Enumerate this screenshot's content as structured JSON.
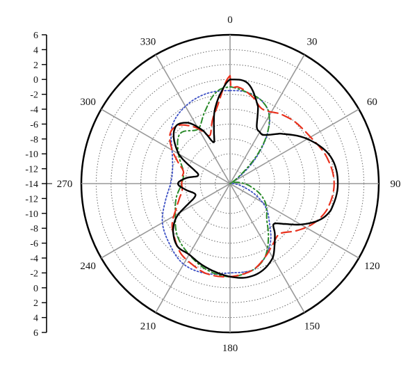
{
  "chart_data": {
    "type": "polar-line",
    "title": "",
    "radial_axis": {
      "min": -14,
      "max": 6,
      "ring_step": 2,
      "left_scale_labels": [
        "6",
        "4",
        "2",
        "0",
        "-2",
        "-4",
        "-6",
        "-8",
        "-10",
        "-12",
        "-14",
        "-12",
        "-10",
        "-8",
        "-6",
        "-4",
        "-2",
        "0",
        "2",
        "4",
        "6"
      ]
    },
    "angular_axis": {
      "direction": "clockwise",
      "zero_location": "top",
      "spoke_step_deg": 30,
      "labels": [
        "0",
        "30",
        "60",
        "90",
        "120",
        "150",
        "180",
        "210",
        "240",
        "270",
        "300",
        "330"
      ]
    },
    "grid": true,
    "series": [
      {
        "style": "solid",
        "color": "#000000",
        "points": [
          [
            0,
            0
          ],
          [
            10,
            -0.3
          ],
          [
            20,
            -3
          ],
          [
            25,
            -5.5
          ],
          [
            30,
            -6
          ],
          [
            35,
            -6
          ],
          [
            45,
            -4.5
          ],
          [
            60,
            -2
          ],
          [
            75,
            0
          ],
          [
            90,
            0.5
          ],
          [
            105,
            0
          ],
          [
            112,
            -1
          ],
          [
            120,
            -3
          ],
          [
            127,
            -5
          ],
          [
            133,
            -6
          ],
          [
            138,
            -5
          ],
          [
            143,
            -4
          ],
          [
            150,
            -2.5
          ],
          [
            160,
            -1.5
          ],
          [
            170,
            -1.2
          ],
          [
            180,
            -1.5
          ],
          [
            190,
            -2
          ],
          [
            200,
            -2.5
          ],
          [
            210,
            -3
          ],
          [
            220,
            -3
          ],
          [
            230,
            -4
          ],
          [
            238,
            -5.5
          ],
          [
            245,
            -8
          ],
          [
            250,
            -9
          ],
          [
            255,
            -9
          ],
          [
            262,
            -8
          ],
          [
            270,
            -7
          ],
          [
            277,
            -8
          ],
          [
            283,
            -9.5
          ],
          [
            290,
            -9
          ],
          [
            300,
            -6
          ],
          [
            315,
            -3.5
          ],
          [
            325,
            -4
          ],
          [
            333,
            -6
          ],
          [
            338,
            -8
          ],
          [
            342,
            -7
          ],
          [
            348,
            -4
          ],
          [
            355,
            -1.5
          ],
          [
            360,
            0
          ]
        ]
      },
      {
        "style": "dashed",
        "color": "#e8301c",
        "points": [
          [
            0,
            0.5
          ],
          [
            0.5,
            -1
          ],
          [
            5,
            -1
          ],
          [
            15,
            -2
          ],
          [
            22,
            -3
          ],
          [
            28,
            -3
          ],
          [
            35,
            -2.5
          ],
          [
            45,
            -2
          ],
          [
            60,
            -1.5
          ],
          [
            75,
            -0.5
          ],
          [
            90,
            0
          ],
          [
            105,
            -0.5
          ],
          [
            115,
            -1.5
          ],
          [
            125,
            -3
          ],
          [
            135,
            -4.5
          ],
          [
            145,
            -4
          ],
          [
            155,
            -3
          ],
          [
            165,
            -2
          ],
          [
            180,
            -1.5
          ],
          [
            195,
            -1.5
          ],
          [
            205,
            -2
          ],
          [
            215,
            -2.5
          ],
          [
            225,
            -3.5
          ],
          [
            235,
            -4.5
          ],
          [
            245,
            -6
          ],
          [
            255,
            -7
          ],
          [
            262,
            -7.5
          ],
          [
            270,
            -7.5
          ],
          [
            278,
            -7.5
          ],
          [
            285,
            -7.5
          ],
          [
            292,
            -6.5
          ],
          [
            300,
            -5
          ],
          [
            310,
            -3.5
          ],
          [
            318,
            -3.5
          ],
          [
            325,
            -4.5
          ],
          [
            330,
            -5.5
          ],
          [
            337,
            -7
          ],
          [
            345,
            -5
          ],
          [
            352,
            -3
          ],
          [
            360,
            0.5
          ]
        ]
      },
      {
        "style": "dash-dot",
        "color": "#2a8a2a",
        "points": [
          [
            0,
            -1
          ],
          [
            10,
            -1.5
          ],
          [
            20,
            -2
          ],
          [
            28,
            -3
          ],
          [
            35,
            -5
          ],
          [
            42,
            -8
          ],
          [
            50,
            -12
          ],
          [
            60,
            -14
          ],
          [
            80,
            -13
          ],
          [
            100,
            -11
          ],
          [
            115,
            -9
          ],
          [
            125,
            -8
          ],
          [
            135,
            -7
          ],
          [
            145,
            -5
          ],
          [
            155,
            -3
          ],
          [
            165,
            -2
          ],
          [
            180,
            -1.5
          ],
          [
            195,
            -2
          ],
          [
            210,
            -3
          ],
          [
            225,
            -4
          ],
          [
            240,
            -5.5
          ],
          [
            255,
            -6.5
          ],
          [
            270,
            -7.5
          ],
          [
            285,
            -7.5
          ],
          [
            300,
            -6
          ],
          [
            315,
            -4.5
          ],
          [
            330,
            -5.5
          ],
          [
            342,
            -3.5
          ],
          [
            352,
            -1.5
          ],
          [
            360,
            -1
          ]
        ]
      },
      {
        "style": "dotted",
        "color": "#3b4fc4",
        "points": [
          [
            0,
            -1.5
          ],
          [
            10,
            -1.5
          ],
          [
            20,
            -2
          ],
          [
            28,
            -3
          ],
          [
            35,
            -5
          ],
          [
            45,
            -9
          ],
          [
            55,
            -13
          ],
          [
            65,
            -14
          ],
          [
            90,
            -13.5
          ],
          [
            105,
            -12
          ],
          [
            115,
            -10
          ],
          [
            125,
            -8
          ],
          [
            135,
            -6.5
          ],
          [
            145,
            -4.5
          ],
          [
            155,
            -3
          ],
          [
            165,
            -2
          ],
          [
            180,
            -2
          ],
          [
            195,
            -1.5
          ],
          [
            210,
            -1.5
          ],
          [
            225,
            -2.5
          ],
          [
            240,
            -3.5
          ],
          [
            255,
            -5
          ],
          [
            270,
            -6
          ],
          [
            285,
            -6
          ],
          [
            300,
            -5
          ],
          [
            315,
            -3
          ],
          [
            330,
            -2
          ],
          [
            345,
            -1.5
          ],
          [
            360,
            -1.5
          ]
        ]
      }
    ]
  }
}
